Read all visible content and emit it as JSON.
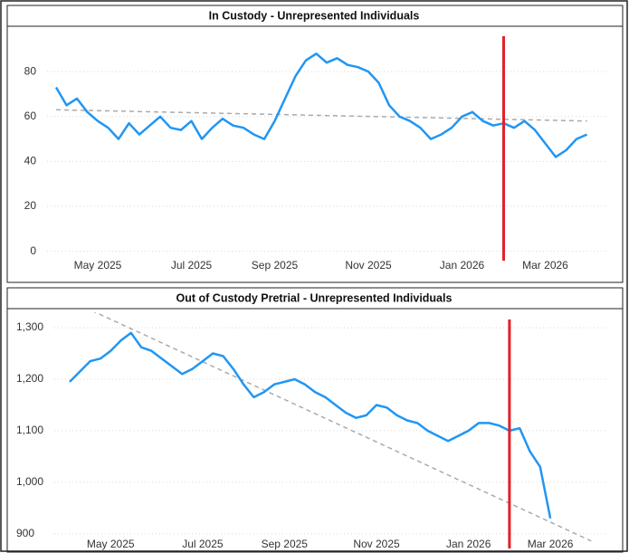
{
  "chart_data": [
    {
      "type": "line",
      "title": "In Custody - Unrepresented Individuals",
      "categories": [
        null,
        null,
        null,
        null,
        "May 2025",
        null,
        null,
        null,
        null,
        null,
        null,
        null,
        null,
        "Jul 2025",
        null,
        null,
        null,
        null,
        null,
        null,
        null,
        "Sep 2025",
        null,
        null,
        null,
        null,
        null,
        null,
        null,
        null,
        "Nov 2025",
        null,
        null,
        null,
        null,
        null,
        null,
        null,
        null,
        "Jan 2026",
        null,
        null,
        null,
        null,
        null,
        null,
        null,
        "Mar 2026",
        null,
        null,
        null,
        null
      ],
      "values": [
        73,
        65,
        68,
        62,
        58,
        55,
        50,
        57,
        52,
        56,
        60,
        55,
        54,
        58,
        50,
        55,
        59,
        56,
        55,
        52,
        50,
        58,
        68,
        78,
        85,
        88,
        84,
        86,
        83,
        82,
        80,
        75,
        65,
        60,
        58,
        55,
        50,
        52,
        55,
        60,
        62,
        58,
        56,
        57,
        55,
        58,
        54,
        48,
        42,
        45,
        50,
        52
      ],
      "color": "#2196f3",
      "ylim": [
        -5,
        99
      ],
      "yticks": [
        0,
        20,
        40,
        60,
        80
      ],
      "grid": true,
      "trendline": {
        "start": 63,
        "end": 58,
        "color": "#aaaaaa"
      },
      "reference_line": {
        "x_index": 43,
        "color": "#e3202a"
      }
    },
    {
      "type": "line",
      "title": "Out of Custody Pretrial - Unrepresented Individuals",
      "categories": [
        null,
        null,
        null,
        null,
        "May 2025",
        null,
        null,
        null,
        null,
        null,
        null,
        null,
        null,
        "Jul 2025",
        null,
        null,
        null,
        null,
        null,
        null,
        null,
        "Sep 2025",
        null,
        null,
        null,
        null,
        null,
        null,
        null,
        null,
        "Nov 2025",
        null,
        null,
        null,
        null,
        null,
        null,
        null,
        null,
        "Jan 2026",
        null,
        null,
        null,
        null,
        null,
        null,
        null,
        "Mar 2026",
        null,
        null,
        null,
        null
      ],
      "values": [
        1195,
        1215,
        1235,
        1240,
        1255,
        1275,
        1290,
        1262,
        1255,
        1240,
        1225,
        1210,
        1220,
        1235,
        1250,
        1245,
        1220,
        1190,
        1165,
        1175,
        1190,
        1195,
        1200,
        1190,
        1175,
        1165,
        1150,
        1135,
        1125,
        1130,
        1150,
        1145,
        1130,
        1120,
        1115,
        1100,
        1090,
        1080,
        1090,
        1100,
        1115,
        1115,
        1110,
        1100,
        1105,
        1060,
        1030,
        930,
        null,
        null,
        null,
        null
      ],
      "color": "#2196f3",
      "ylim": [
        868,
        1330
      ],
      "yticks": [
        900,
        {
          "value": 1000,
          "label": "1,000"
        },
        {
          "value": 1100,
          "label": "1,100"
        },
        {
          "value": 1200,
          "label": "1,200"
        },
        {
          "value": 1300,
          "label": "1,300"
        }
      ],
      "grid": true,
      "trendline": {
        "start": 1353,
        "end": 886,
        "color": "#aaaaaa"
      },
      "reference_line": {
        "x_index": 43,
        "color": "#e3202a"
      }
    }
  ]
}
